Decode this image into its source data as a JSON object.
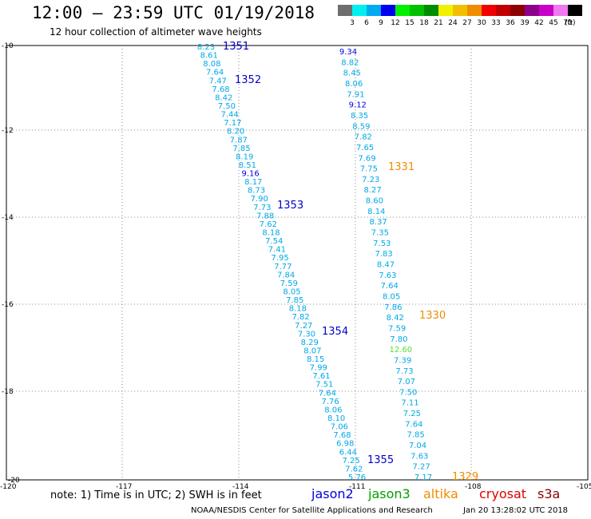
{
  "header": {
    "title": "12:00 – 23:59 UTC 01/19/2018",
    "subtitle": "12 hour collection of altimeter wave heights"
  },
  "legend": {
    "colors": [
      "#6e6e6e",
      "#00f0f0",
      "#00aaf0",
      "#0000f0",
      "#00f000",
      "#00c000",
      "#008c00",
      "#f0f000",
      "#f0c000",
      "#f08c00",
      "#f00000",
      "#c00000",
      "#8c0000",
      "#8c008c",
      "#c800c8",
      "#f078f0",
      "#000000"
    ],
    "labels": [
      "3",
      "6",
      "9",
      "12",
      "15",
      "18",
      "21",
      "24",
      "27",
      "30",
      "33",
      "36",
      "39",
      "42",
      "45",
      "70"
    ],
    "unit": "(ft)"
  },
  "axes": {
    "lat_labels": [
      "-10",
      "-12",
      "-14",
      "-16",
      "-18",
      "-20"
    ],
    "lon_labels": [
      "-120",
      "-117",
      "-114",
      "-111",
      "-108",
      "-105"
    ]
  },
  "tracks": {
    "jason2": {
      "color": "#00a8e8",
      "values": [
        "8.23",
        "8.61",
        "8.08",
        "7.64",
        "7.47",
        "7.68",
        "8.42",
        "7.50",
        "7.44",
        "7.17",
        "8.20",
        "7.87",
        "7.85",
        "8.19",
        "8.51",
        "9.16",
        "8.17",
        "8.73",
        "7.90",
        "7.73",
        "7.88",
        "7.62",
        "8.18",
        "7.54",
        "7.41",
        "7.95",
        "7.77",
        "7.84",
        "7.59",
        "8.05",
        "7.85",
        "8.18",
        "7.82",
        "7.27",
        "7.30",
        "8.29",
        "8.07",
        "8.15",
        "7.99",
        "7.61",
        "7.51",
        "7.64",
        "7.76",
        "8.06",
        "8.10",
        "7.06",
        "7.68",
        "6.98",
        "6.44",
        "7.25",
        "7.62",
        "5.76"
      ],
      "highlight": {
        "15": "#0000e0"
      },
      "orbits": [
        {
          "label": "1351",
          "color": "#0000c8"
        },
        {
          "label": "1352",
          "color": "#0000c8"
        },
        {
          "label": "1353",
          "color": "#0000c8"
        },
        {
          "label": "1354",
          "color": "#0000c8"
        },
        {
          "label": "1355",
          "color": "#0000c8"
        }
      ]
    },
    "altika": {
      "color": "#00a8e8",
      "values": [
        "9.34",
        "8.82",
        "8.45",
        "8.06",
        "7.91",
        "9.12",
        "8.35",
        "8.59",
        "7.82",
        "7.65",
        "7.69",
        "7.75",
        "7.23",
        "8.27",
        "8.60",
        "8.14",
        "8.37",
        "7.35",
        "7.53",
        "7.83",
        "8.47",
        "7.63",
        "7.64",
        "8.05",
        "7.86",
        "8.42",
        "7.59",
        "7.80",
        "12.60",
        "7.39",
        "7.73",
        "7.07",
        "7.50",
        "7.11",
        "7.25",
        "7.64",
        "7.85",
        "7.04",
        "7.63",
        "7.27",
        "7.17"
      ],
      "highlight": {
        "0": "#0000e0",
        "5": "#0000e0",
        "28": "#55dd33"
      },
      "orbits": [
        {
          "label": "1331",
          "color": "#f08c00"
        },
        {
          "label": "1330",
          "color": "#f08c00"
        },
        {
          "label": "1329",
          "color": "#f08c00"
        }
      ]
    }
  },
  "footer": {
    "note": "note: 1) Time is in UTC; 2) SWH is in feet",
    "satellites": [
      {
        "name": "jason2",
        "color": "#0000e0"
      },
      {
        "name": "jason3",
        "color": "#00a000"
      },
      {
        "name": "altika",
        "color": "#f08c00"
      },
      {
        "name": "cryosat",
        "color": "#e00000"
      },
      {
        "name": "s3a",
        "color": "#8c0000"
      }
    ],
    "center": "NOAA/NESDIS Center for Satellite Applications and Research",
    "date": "Jan 20 13:28:02 UTC 2018"
  }
}
